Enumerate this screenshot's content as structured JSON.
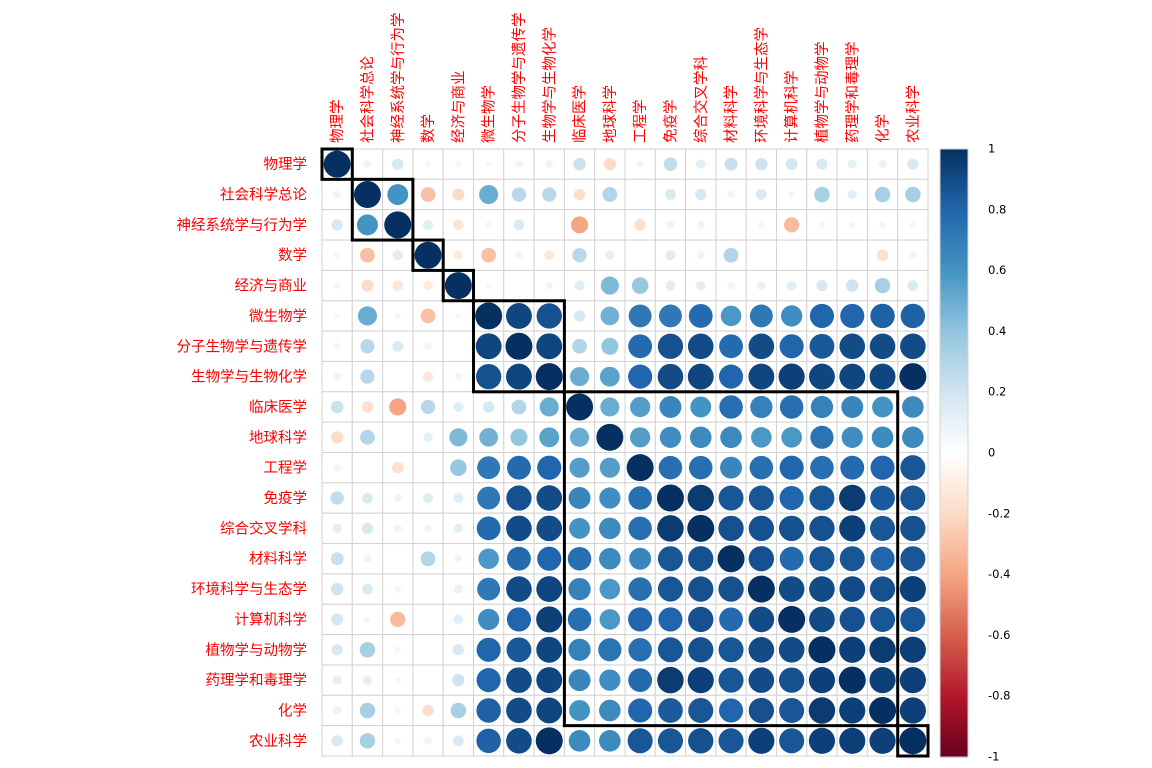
{
  "chart_data": {
    "type": "heatmap",
    "style": "corrplot-circle",
    "labels": [
      "物理学",
      "社会科学总论",
      "神经系统学与行为学",
      "数学",
      "经济与商业",
      "微生物学",
      "分子生物学与遗传学",
      "生物学与生物化学",
      "临床医学",
      "地球科学",
      "工程学",
      "免疫学",
      "综合交叉学科",
      "材料科学",
      "环境科学与生态学",
      "计算机科学",
      "植物学与动物学",
      "药理学和毒理学",
      "化学",
      "农业科学"
    ],
    "matrix": [
      [
        1.0,
        0.08,
        0.18,
        0.06,
        -0.06,
        0.05,
        0.07,
        0.08,
        0.22,
        -0.2,
        0.07,
        0.25,
        0.12,
        0.23,
        0.21,
        0.19,
        0.17,
        0.11,
        0.09,
        0.17
      ],
      [
        0.08,
        1.0,
        0.6,
        -0.3,
        -0.2,
        0.5,
        0.28,
        0.28,
        -0.18,
        0.3,
        0.0,
        0.16,
        0.18,
        0.08,
        0.16,
        -0.06,
        0.33,
        0.12,
        0.33,
        0.33
      ],
      [
        0.18,
        0.6,
        1.0,
        0.14,
        -0.15,
        0.06,
        0.16,
        0.0,
        -0.4,
        0.0,
        -0.18,
        0.08,
        0.08,
        0.0,
        -0.06,
        -0.32,
        -0.06,
        0.06,
        0.06,
        -0.06
      ],
      [
        0.06,
        -0.3,
        0.14,
        1.0,
        -0.12,
        -0.3,
        -0.08,
        -0.14,
        0.28,
        0.12,
        0.0,
        0.14,
        0.08,
        0.3,
        0.0,
        0.0,
        0.0,
        0.0,
        -0.18,
        -0.08
      ],
      [
        -0.06,
        -0.2,
        -0.15,
        -0.12,
        1.0,
        0.05,
        0.0,
        0.07,
        0.14,
        0.45,
        0.38,
        0.14,
        0.12,
        0.08,
        0.1,
        0.13,
        0.17,
        0.21,
        0.33,
        0.16
      ],
      [
        0.05,
        0.5,
        0.06,
        -0.3,
        0.05,
        1.0,
        0.92,
        0.88,
        0.18,
        0.48,
        0.72,
        0.72,
        0.78,
        0.58,
        0.72,
        0.62,
        0.8,
        0.8,
        0.82,
        0.82
      ],
      [
        0.07,
        0.28,
        0.16,
        -0.08,
        0.0,
        0.92,
        1.0,
        0.92,
        0.3,
        0.4,
        0.78,
        0.88,
        0.9,
        0.78,
        0.9,
        0.8,
        0.85,
        0.9,
        0.9,
        0.9
      ],
      [
        0.08,
        0.28,
        0.0,
        -0.14,
        0.07,
        0.88,
        0.92,
        1.0,
        0.5,
        0.54,
        0.8,
        0.9,
        0.92,
        0.8,
        0.92,
        0.94,
        0.92,
        0.92,
        0.92,
        1.0
      ],
      [
        0.22,
        -0.18,
        -0.4,
        0.28,
        0.14,
        0.18,
        0.3,
        0.5,
        1.0,
        0.5,
        0.56,
        0.66,
        0.6,
        0.76,
        0.68,
        0.76,
        0.68,
        0.66,
        0.6,
        0.64
      ],
      [
        -0.2,
        0.3,
        0.0,
        0.12,
        0.45,
        0.48,
        0.4,
        0.54,
        0.5,
        1.0,
        0.56,
        0.62,
        0.64,
        0.64,
        0.58,
        0.58,
        0.74,
        0.62,
        0.64,
        0.64
      ],
      [
        0.07,
        0.0,
        -0.18,
        0.0,
        0.38,
        0.72,
        0.78,
        0.8,
        0.56,
        0.56,
        1.0,
        0.76,
        0.76,
        0.66,
        0.76,
        0.8,
        0.76,
        0.78,
        0.8,
        0.86
      ],
      [
        0.25,
        0.16,
        0.08,
        0.14,
        0.14,
        0.72,
        0.88,
        0.9,
        0.66,
        0.62,
        0.76,
        1.0,
        0.96,
        0.86,
        0.86,
        0.8,
        0.86,
        0.96,
        0.84,
        0.86
      ],
      [
        0.12,
        0.18,
        0.08,
        0.08,
        0.12,
        0.78,
        0.9,
        0.9,
        0.6,
        0.64,
        0.76,
        0.96,
        1.0,
        0.88,
        0.88,
        0.88,
        0.88,
        0.94,
        0.86,
        0.88
      ],
      [
        0.23,
        0.08,
        0.0,
        0.3,
        0.08,
        0.58,
        0.78,
        0.8,
        0.76,
        0.64,
        0.66,
        0.86,
        0.88,
        1.0,
        0.88,
        0.78,
        0.86,
        0.86,
        0.8,
        0.86
      ],
      [
        0.21,
        0.16,
        -0.06,
        0.0,
        0.1,
        0.72,
        0.9,
        0.92,
        0.68,
        0.58,
        0.76,
        0.86,
        0.88,
        0.88,
        1.0,
        0.9,
        0.9,
        0.9,
        0.88,
        0.94
      ],
      [
        0.19,
        -0.06,
        -0.32,
        0.0,
        0.13,
        0.62,
        0.8,
        0.94,
        0.76,
        0.58,
        0.8,
        0.8,
        0.88,
        0.78,
        0.9,
        1.0,
        0.9,
        0.88,
        0.86,
        0.86
      ],
      [
        0.17,
        0.33,
        -0.06,
        0.0,
        0.17,
        0.8,
        0.85,
        0.92,
        0.68,
        0.74,
        0.76,
        0.86,
        0.88,
        0.86,
        0.9,
        0.9,
        1.0,
        0.94,
        0.96,
        0.94
      ],
      [
        0.11,
        0.12,
        0.06,
        0.0,
        0.21,
        0.8,
        0.9,
        0.92,
        0.66,
        0.62,
        0.78,
        0.96,
        0.94,
        0.86,
        0.9,
        0.88,
        0.94,
        1.0,
        0.94,
        0.94
      ],
      [
        0.09,
        0.33,
        0.06,
        -0.18,
        0.33,
        0.82,
        0.9,
        0.92,
        0.6,
        0.64,
        0.8,
        0.84,
        0.86,
        0.8,
        0.88,
        0.86,
        0.96,
        0.94,
        1.0,
        0.94
      ],
      [
        0.17,
        0.33,
        -0.06,
        -0.08,
        0.16,
        0.82,
        0.9,
        1.0,
        0.64,
        0.64,
        0.86,
        0.86,
        0.88,
        0.86,
        0.94,
        0.86,
        0.94,
        0.94,
        0.94,
        1.0
      ]
    ],
    "clusters": [
      [
        1,
        1
      ],
      [
        2,
        3
      ],
      [
        4,
        4
      ],
      [
        5,
        5
      ],
      [
        6,
        8
      ],
      [
        9,
        19
      ],
      [
        20,
        20
      ]
    ],
    "colorbar": {
      "range": [
        -1,
        1
      ],
      "ticks": [
        "1",
        "0.8",
        "0.6",
        "0.4",
        "0.2",
        "0",
        "-0.2",
        "-0.4",
        "-0.6",
        "-0.8",
        "-1"
      ],
      "colors": [
        "#67001F",
        "#B2182B",
        "#D6604D",
        "#F4A582",
        "#FDDBC7",
        "#FFFFFF",
        "#D1E5F0",
        "#92C5DE",
        "#4393C3",
        "#2166AC",
        "#053061"
      ]
    },
    "grid": true
  }
}
